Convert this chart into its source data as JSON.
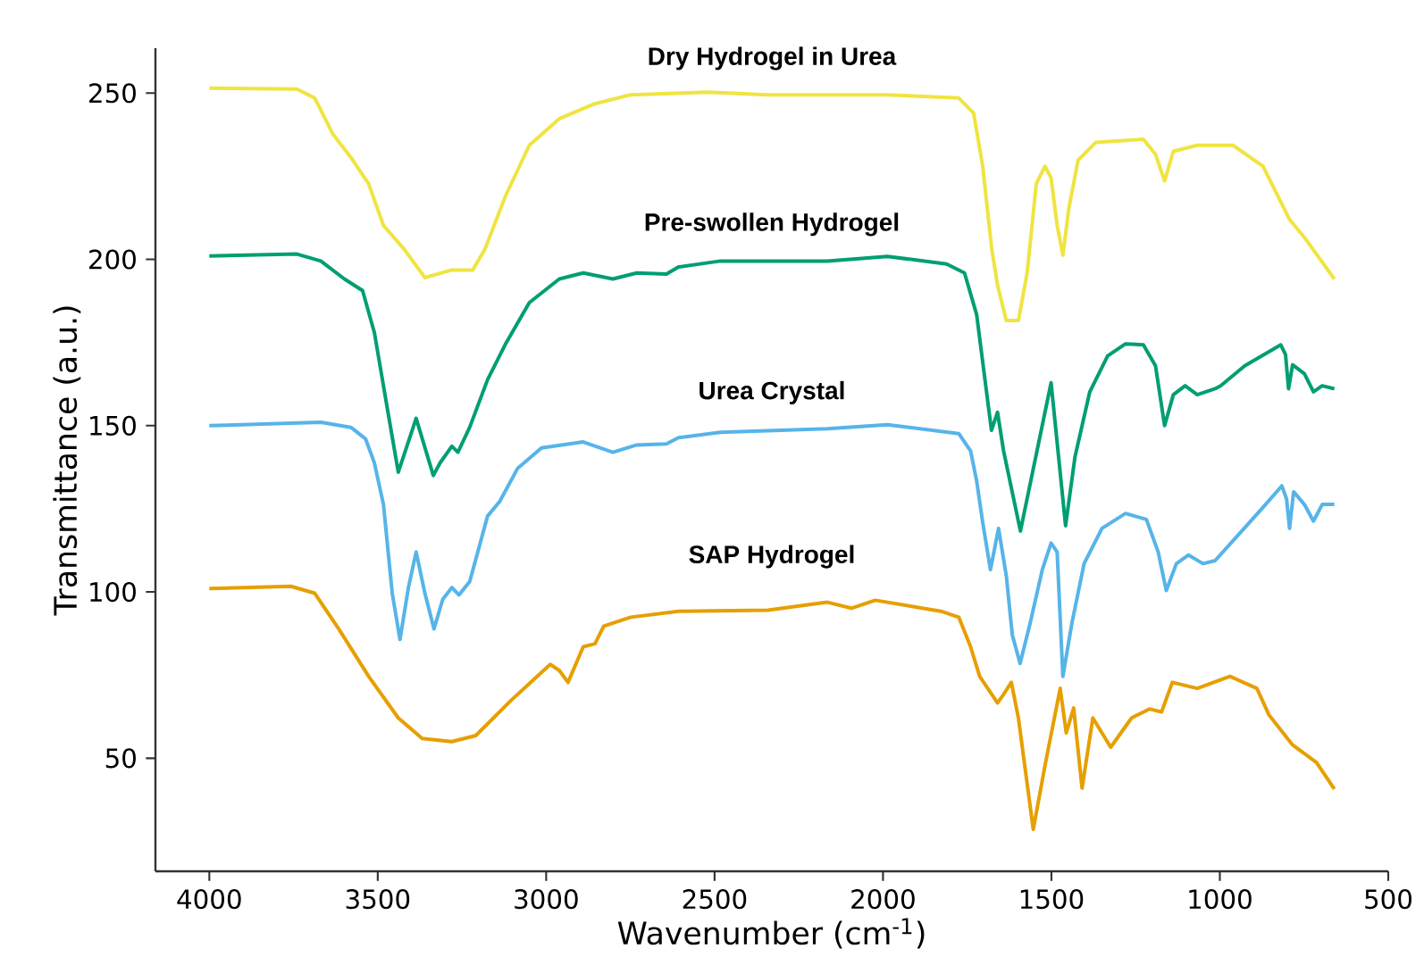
{
  "chart_data": {
    "type": "line",
    "xlabel": "Wavenumber (cm$^{-1}$)",
    "ylabel": "Transmittance (a.u.)",
    "xlim": [
      4160,
      500
    ],
    "ylim": [
      16,
      263.5
    ],
    "xticks": [
      4000,
      3500,
      3000,
      2500,
      2000,
      1500,
      1000,
      500
    ],
    "yticks": [
      50,
      100,
      150,
      200,
      250
    ],
    "series": [
      {
        "name": "Dry Hydrogel in Urea",
        "color": "#f0e442",
        "x": [
          4000,
          3740,
          3687,
          3634,
          3580,
          3527,
          3483,
          3421,
          3360,
          3280,
          3218,
          3182,
          3121,
          3050,
          2961,
          2855,
          2749,
          2518,
          2342,
          1987,
          1775,
          1731,
          1704,
          1677,
          1660,
          1634,
          1598,
          1572,
          1545,
          1519,
          1501,
          1483,
          1466,
          1448,
          1421,
          1368,
          1227,
          1191,
          1164,
          1138,
          1067,
          961,
          872,
          793,
          749,
          660
        ],
        "values": [
          251.5,
          251.2,
          248.5,
          237.8,
          230.7,
          222.7,
          210.2,
          203,
          194.5,
          196.8,
          196.8,
          203,
          219,
          234.3,
          242.3,
          246.8,
          249.5,
          250.3,
          249.5,
          249.5,
          248.5,
          244,
          228,
          203,
          192.3,
          181.6,
          181.6,
          196,
          222.7,
          228,
          224.5,
          210.2,
          201.3,
          215.5,
          229.8,
          235.2,
          236.1,
          231.6,
          223.6,
          232.5,
          234.3,
          234.3,
          228,
          212,
          206.6,
          194.1
        ]
      },
      {
        "name": "Pre-swollen Hydrogel",
        "color": "#009e73",
        "x": [
          4000,
          3740,
          3669,
          3599,
          3545,
          3510,
          3474,
          3439,
          3386,
          3335,
          3315,
          3280,
          3262,
          3227,
          3174,
          3121,
          3050,
          2961,
          2890,
          2802,
          2731,
          2643,
          2607,
          2483,
          2165,
          1987,
          1811,
          1758,
          1722,
          1695,
          1678,
          1660,
          1642,
          1592,
          1501,
          1458,
          1430,
          1386,
          1333,
          1280,
          1227,
          1191,
          1164,
          1138,
          1103,
          1067,
          1014,
          997,
          926,
          819,
          805,
          796,
          784,
          749,
          722,
          696,
          660
        ],
        "values": [
          201,
          201.6,
          199.5,
          194.1,
          190.6,
          178,
          156.6,
          136,
          152.2,
          135,
          138.8,
          143.8,
          142,
          149.5,
          163.8,
          174.5,
          187,
          194.1,
          195.9,
          194.1,
          195.9,
          195.6,
          197.7,
          199.5,
          199.5,
          200.9,
          198.6,
          195.9,
          183.4,
          162,
          148.6,
          154,
          142.4,
          118.3,
          162.9,
          119.9,
          140.6,
          160.2,
          171,
          174.6,
          174.3,
          168,
          150,
          159.3,
          162,
          159.3,
          161.1,
          162,
          168,
          174.3,
          171.4,
          161.1,
          168.3,
          165.6,
          160.2,
          162,
          161.1
        ]
      },
      {
        "name": "Urea Crystal",
        "color": "#56b4e9",
        "x": [
          4000,
          3669,
          3580,
          3536,
          3510,
          3483,
          3457,
          3434,
          3409,
          3386,
          3360,
          3333,
          3307,
          3280,
          3259,
          3227,
          3174,
          3138,
          3085,
          3014,
          2890,
          2802,
          2731,
          2643,
          2607,
          2483,
          2165,
          1987,
          1775,
          1740,
          1722,
          1704,
          1681,
          1657,
          1634,
          1616,
          1593,
          1563,
          1527,
          1501,
          1483,
          1466,
          1439,
          1403,
          1350,
          1280,
          1218,
          1183,
          1159,
          1129,
          1093,
          1050,
          1014,
          944,
          873,
          816,
          802,
          793,
          781,
          749,
          722,
          696,
          660
        ],
        "values": [
          150,
          151,
          149.5,
          146,
          138.8,
          126.3,
          99.6,
          85.7,
          101.3,
          112,
          99.6,
          88.9,
          97.8,
          101.3,
          99.1,
          103.1,
          122.8,
          127.2,
          137.1,
          143.3,
          145.1,
          142,
          144.2,
          144.5,
          146.4,
          148,
          149.1,
          150.3,
          147.6,
          142.4,
          133.4,
          120.9,
          106.7,
          119.1,
          104.9,
          87,
          78.5,
          90.7,
          106.7,
          114.7,
          112,
          74.6,
          90.7,
          108.5,
          119.1,
          123.6,
          121.8,
          112,
          100.4,
          108.5,
          111.1,
          108.5,
          109.4,
          117.3,
          125.3,
          131.9,
          128,
          119.1,
          130.1,
          126.3,
          121.3,
          126.3,
          126.3
        ]
      },
      {
        "name": "SAP Hydrogel",
        "color": "#e69f00",
        "x": [
          4000,
          3758,
          3687,
          3616,
          3527,
          3439,
          3368,
          3280,
          3209,
          3103,
          2988,
          2961,
          2935,
          2890,
          2855,
          2829,
          2749,
          2607,
          2342,
          2165,
          2094,
          2023,
          1828,
          1775,
          1740,
          1713,
          1660,
          1642,
          1619,
          1598,
          1554,
          1519,
          1474,
          1456,
          1434,
          1409,
          1377,
          1324,
          1262,
          1209,
          1173,
          1141,
          1067,
          970,
          890,
          854,
          785,
          713,
          660
        ],
        "values": [
          101,
          101.7,
          99.6,
          88.9,
          74.6,
          62.1,
          55.9,
          55,
          56.8,
          67.5,
          78.2,
          76.4,
          72.8,
          83.5,
          84.4,
          89.7,
          92.4,
          94.2,
          94.5,
          96.9,
          95.1,
          97.5,
          94.2,
          92.4,
          83.5,
          74.6,
          66.6,
          69.2,
          72.8,
          62.1,
          28.6,
          47.8,
          71,
          57.6,
          65.1,
          41,
          62.1,
          53.3,
          62.1,
          64.8,
          63.9,
          72.8,
          71,
          74.6,
          71,
          63,
          54.1,
          48.7,
          40.7
        ]
      }
    ]
  }
}
